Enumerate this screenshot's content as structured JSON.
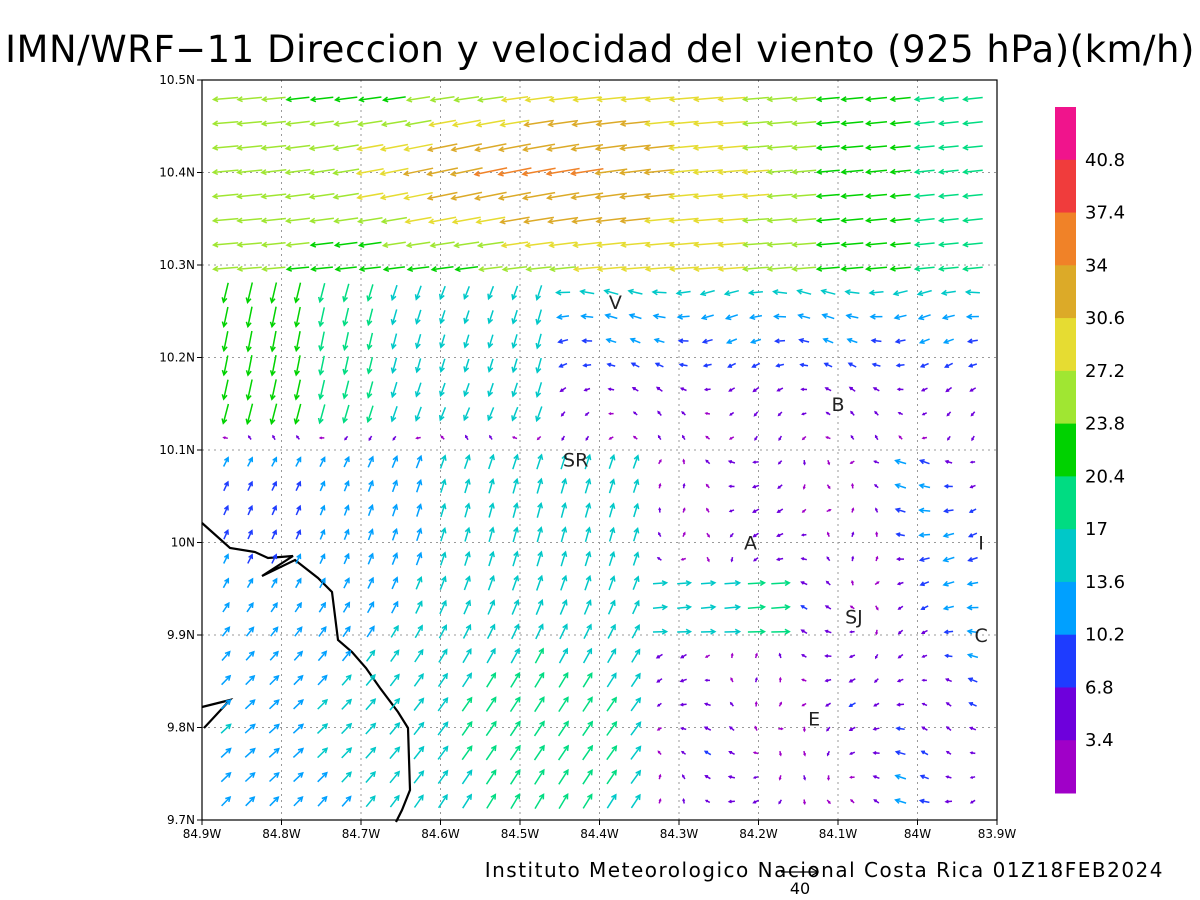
{
  "title": "IMN/WRF−11 Direccion y velocidad del viento (925 hPa)(km/h)",
  "footer": "Instituto Meteorologico Nacional Costa Rica 01Z18FEB2024",
  "reference_vector": {
    "label": "40",
    "speed": 40
  },
  "axes": {
    "x_ticks": [
      "84.9W",
      "84.8W",
      "84.7W",
      "84.6W",
      "84.5W",
      "84.4W",
      "84.3W",
      "84.2W",
      "84.1W",
      "84W",
      "83.9W"
    ],
    "y_ticks": [
      "10.5N",
      "10.4N",
      "10.3N",
      "10.2N",
      "10.1N",
      "10N",
      "9.9N",
      "9.8N",
      "9.7N"
    ],
    "lon_range": [
      -84.9,
      -83.9
    ],
    "lat_range": [
      9.7,
      10.5
    ],
    "grid": "dotted"
  },
  "colorbar": {
    "labels": [
      "40.8",
      "37.4",
      "34",
      "30.6",
      "27.2",
      "23.8",
      "20.4",
      "17",
      "13.6",
      "10.2",
      "6.8",
      "3.4"
    ],
    "colors": [
      "#f0148c",
      "#f03c3c",
      "#f08228",
      "#dcaa28",
      "#e6dc32",
      "#a0e632",
      "#00d200",
      "#00dc82",
      "#00c8c8",
      "#00a0ff",
      "#1e3cff",
      "#6e00dc",
      "#a000c8"
    ]
  },
  "cities": [
    {
      "label": "V",
      "lon": -84.38,
      "lat": 10.26
    },
    {
      "label": "SR",
      "lon": -84.43,
      "lat": 10.09
    },
    {
      "label": "B",
      "lon": -84.1,
      "lat": 10.15
    },
    {
      "label": "A",
      "lon": -84.21,
      "lat": 10.0
    },
    {
      "label": "I",
      "lon": -83.92,
      "lat": 10.0
    },
    {
      "label": "SJ",
      "lon": -84.08,
      "lat": 9.92
    },
    {
      "label": "C",
      "lon": -83.92,
      "lat": 9.9
    },
    {
      "label": "E",
      "lon": -84.13,
      "lat": 9.81
    }
  ]
}
